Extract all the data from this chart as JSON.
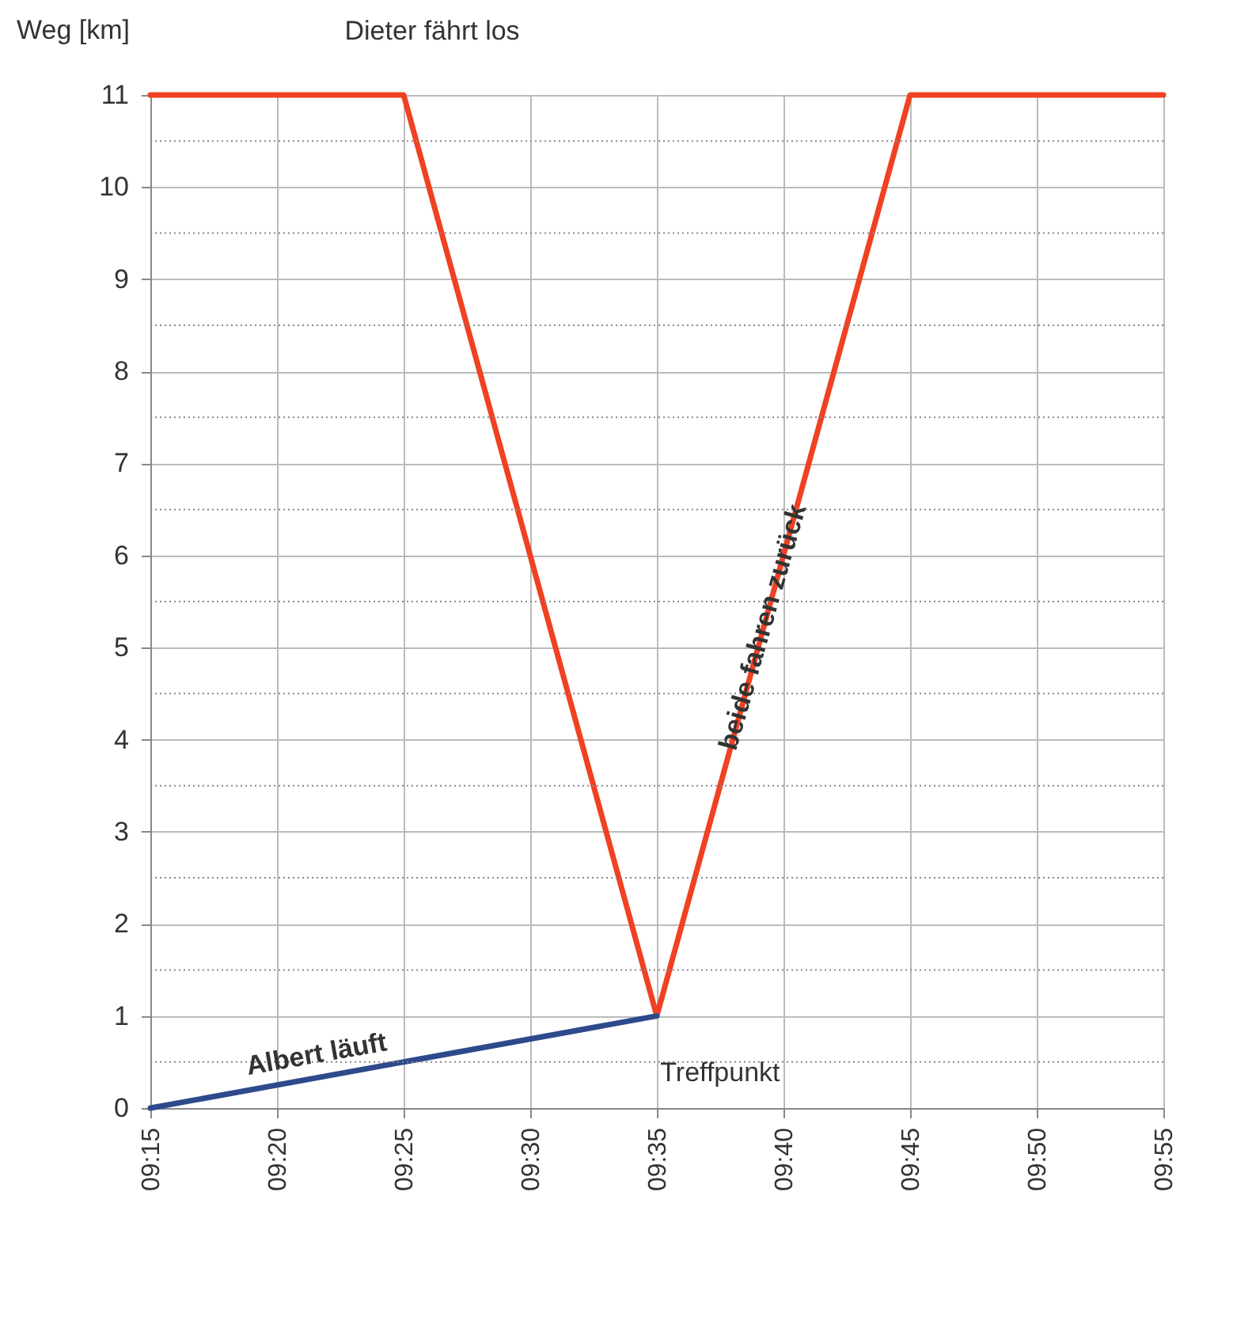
{
  "chart_data": {
    "type": "line",
    "ylabel": "Weg [km]",
    "series": [
      {
        "color": "#ef4123",
        "x": [
          9.25,
          9.4167,
          9.5833,
          9.75,
          9.9167
        ],
        "values": [
          11,
          11,
          1,
          11,
          11
        ]
      },
      {
        "color": "#2e4a8c",
        "x": [
          9.25,
          9.5833
        ],
        "values": [
          0,
          1
        ]
      }
    ],
    "xlim": [
      9.25,
      9.9167
    ],
    "xticks": [
      {
        "value": 9.25,
        "label": "09:15"
      },
      {
        "value": 9.3333,
        "label": "09:20"
      },
      {
        "value": 9.4167,
        "label": "09:25"
      },
      {
        "value": 9.5,
        "label": "09:30"
      },
      {
        "value": 9.5833,
        "label": "09:35"
      },
      {
        "value": 9.6667,
        "label": "09:40"
      },
      {
        "value": 9.75,
        "label": "09:45"
      },
      {
        "value": 9.8333,
        "label": "09:50"
      },
      {
        "value": 9.9167,
        "label": "09:55"
      }
    ],
    "ylim": [
      0,
      11
    ],
    "yticks": [
      0,
      {
        "value": 0.5,
        "label": null
      },
      1,
      {
        "value": 1.5,
        "label": null
      },
      2,
      {
        "value": 2.5,
        "label": null
      },
      3,
      {
        "value": 3.5,
        "label": null
      },
      4,
      {
        "value": 4.5,
        "label": null
      },
      5,
      {
        "value": 5.5,
        "label": null
      },
      6,
      {
        "value": 6.5,
        "label": null
      },
      7,
      {
        "value": 7.5,
        "label": null
      },
      8,
      {
        "value": 8.5,
        "label": null
      },
      9,
      {
        "value": 9.5,
        "label": null
      },
      10,
      {
        "value": 10.5,
        "label": null
      },
      11
    ],
    "grid": true,
    "marker": "none",
    "line_style": "solid",
    "annotations": [
      {
        "text": "Dieter fährt los",
        "x": 9.4167,
        "y": 11
      },
      {
        "text": "Albert läuft",
        "x": 9.365,
        "y": 0.35
      },
      {
        "text": "beide fahren zurück",
        "x": 9.6583,
        "y": 5.5
      },
      {
        "text": "Treffpunkt",
        "x": 9.5833,
        "y": 1
      }
    ]
  }
}
